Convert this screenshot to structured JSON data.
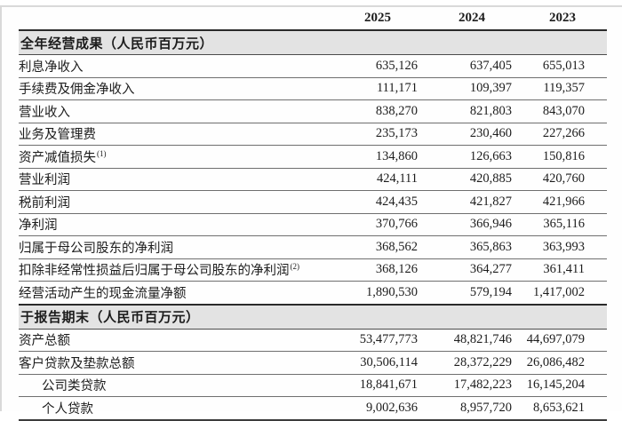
{
  "table": {
    "columns": [
      "2025",
      "2024",
      "2023"
    ],
    "sections": [
      {
        "header": "全年经营成果（人民币百万元）",
        "rows": [
          {
            "label": "利息净收入",
            "sup": "",
            "indent": false,
            "values": [
              "635,126",
              "637,405",
              "655,013"
            ]
          },
          {
            "label": "手续费及佣金净收入",
            "sup": "",
            "indent": false,
            "values": [
              "111,171",
              "109,397",
              "119,357"
            ]
          },
          {
            "label": "营业收入",
            "sup": "",
            "indent": false,
            "values": [
              "838,270",
              "821,803",
              "843,070"
            ]
          },
          {
            "label": "业务及管理费",
            "sup": "",
            "indent": false,
            "values": [
              "235,173",
              "230,460",
              "227,266"
            ]
          },
          {
            "label": "资产减值损失",
            "sup": "(1)",
            "indent": false,
            "values": [
              "134,860",
              "126,663",
              "150,816"
            ]
          },
          {
            "label": "营业利润",
            "sup": "",
            "indent": false,
            "values": [
              "424,111",
              "420,885",
              "420,760"
            ]
          },
          {
            "label": "税前利润",
            "sup": "",
            "indent": false,
            "values": [
              "424,435",
              "421,827",
              "421,966"
            ]
          },
          {
            "label": "净利润",
            "sup": "",
            "indent": false,
            "values": [
              "370,766",
              "366,946",
              "365,116"
            ]
          },
          {
            "label": "归属于母公司股东的净利润",
            "sup": "",
            "indent": false,
            "values": [
              "368,562",
              "365,863",
              "363,993"
            ]
          },
          {
            "label": "扣除非经常性损益后归属于母公司股东的净利润",
            "sup": "(2)",
            "indent": false,
            "values": [
              "368,126",
              "364,277",
              "361,411"
            ]
          },
          {
            "label": "经营活动产生的现金流量净额",
            "sup": "",
            "indent": false,
            "values": [
              "1,890,530",
              "579,194",
              "1,417,002"
            ]
          }
        ]
      },
      {
        "header": "于报告期末（人民币百万元）",
        "rows": [
          {
            "label": "资产总额",
            "sup": "",
            "indent": false,
            "values": [
              "53,477,773",
              "48,821,746",
              "44,697,079"
            ]
          },
          {
            "label": "客户贷款及垫款总额",
            "sup": "",
            "indent": false,
            "values": [
              "30,506,114",
              "28,372,229",
              "26,086,482"
            ]
          },
          {
            "label": "公司类贷款",
            "sup": "",
            "indent": true,
            "values": [
              "18,841,671",
              "17,482,223",
              "16,145,204"
            ]
          },
          {
            "label": "个人贷款",
            "sup": "",
            "indent": true,
            "values": [
              "9,002,636",
              "8,957,720",
              "8,653,621"
            ]
          }
        ]
      }
    ]
  }
}
